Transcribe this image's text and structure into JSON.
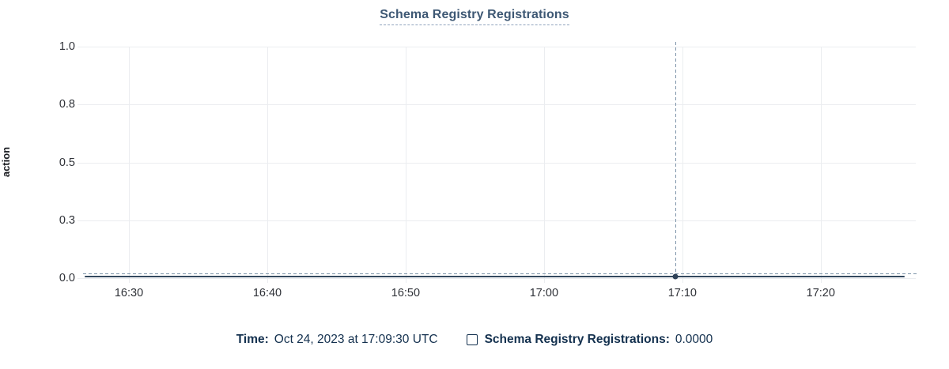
{
  "title": "Schema Registry Registrations",
  "y_axis_title": "action",
  "tooltip": {
    "time_label": "Time:",
    "time_value": "Oct 24, 2023 at 17:09:30 UTC",
    "series_label": "Schema Registry Registrations:",
    "series_value": "0.0000"
  },
  "chart_data": {
    "type": "line",
    "title": "Schema Registry Registrations",
    "xlabel": "",
    "ylabel": "action",
    "x_ticks": [
      "16:30",
      "16:40",
      "16:50",
      "17:00",
      "17:10",
      "17:20"
    ],
    "y_ticks": [
      "1.0",
      "0.8",
      "0.5",
      "0.3",
      "0.0"
    ],
    "ylim": [
      0,
      1
    ],
    "grid": true,
    "legend_position": "bottom",
    "series": [
      {
        "name": "Schema Registry Registrations",
        "x": [
          "16:30",
          "16:40",
          "16:50",
          "17:00",
          "17:10",
          "17:20"
        ],
        "values": [
          0,
          0,
          0,
          0,
          0,
          0
        ]
      }
    ],
    "hover_point": {
      "time": "17:09:30",
      "value": 0
    }
  },
  "colors": {
    "title": "#3e5874",
    "title_underline": "#8fa3bd",
    "axis_text": "#2f3238",
    "axis_title_text": "#1a1c21",
    "gridline": "#ebedf0",
    "series_line": "#34495f",
    "marker": "#2e4158",
    "crosshair": "#7e94a9",
    "legend_text": "#14314f"
  }
}
